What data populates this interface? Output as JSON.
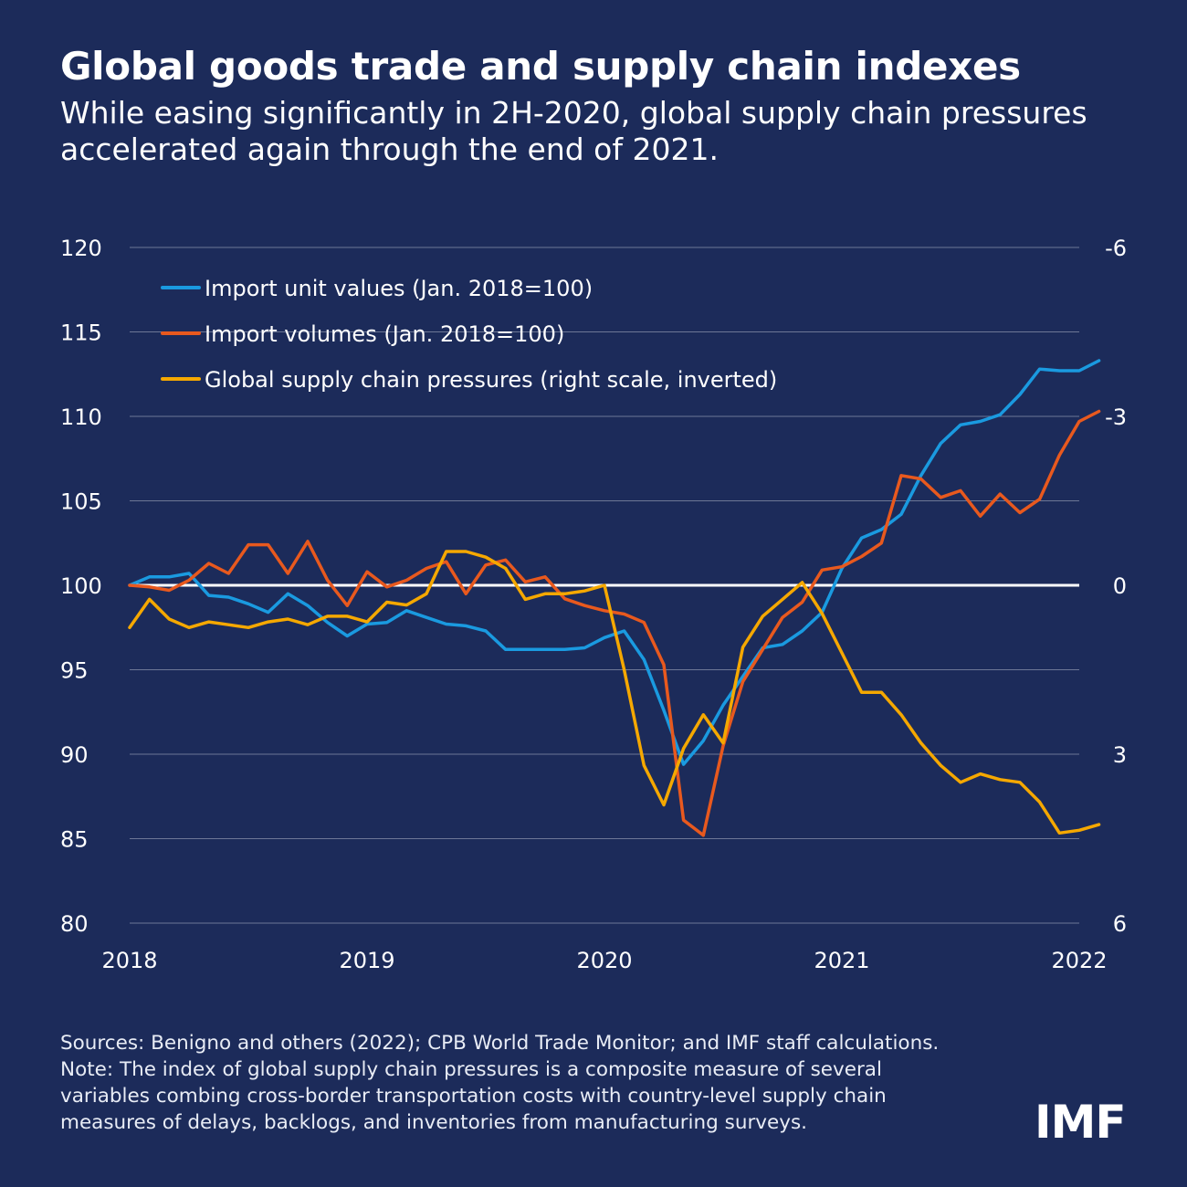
{
  "title": "Global goods trade and supply chain indexes",
  "subtitle": "While easing significantly in 2H-2020, global supply chain pressures accelerated again through the end of 2021.",
  "sources": "Sources: Benigno and others (2022); CPB World Trade Monitor; and IMF staff calculations.",
  "note_lines": [
    "Note: The index of global supply chain pressures is a composite measure of several",
    "variables combing cross-border transportation costs with country-level supply chain",
    "measures of delays, backlogs, and inventories from manufacturing surveys."
  ],
  "logo_text": "IMF",
  "colors": {
    "background": "#1c2b5a",
    "import_unit_values": "#1a9ae0",
    "import_volumes": "#e8591e",
    "supply_chain_pressures": "#f5a800",
    "gridline": "#6d7796",
    "baseline": "#ffffff"
  },
  "chart_data": {
    "type": "line",
    "x_tick_labels": [
      "2018",
      "2019",
      "2020",
      "2021",
      "2022"
    ],
    "x_range": [
      2018,
      2022
    ],
    "y_left": {
      "range": [
        80,
        120
      ],
      "ticks": [
        "120",
        "115",
        "110",
        "105",
        "100",
        "95",
        "90",
        "85",
        "80"
      ]
    },
    "y_right": {
      "range": [
        -6,
        6
      ],
      "inverted": true,
      "ticks": [
        "-6",
        "-3",
        "0",
        "3",
        "6"
      ]
    },
    "gridlines": true,
    "legend_position": "top-left",
    "series": [
      {
        "name": "Import unit values (Jan. 2018=100)",
        "axis": "left",
        "color": "#1a9ae0",
        "x_start": 2018,
        "step": 0.08333,
        "values": [
          100.0,
          100.5,
          100.5,
          100.7,
          99.4,
          99.3,
          98.9,
          98.4,
          99.5,
          98.8,
          97.8,
          97.0,
          97.7,
          97.8,
          98.5,
          98.1,
          97.7,
          97.6,
          97.3,
          96.2,
          96.2,
          96.2,
          96.2,
          96.3,
          96.9,
          97.3,
          95.6,
          92.6,
          89.4,
          90.8,
          92.9,
          94.6,
          96.3,
          96.5,
          97.3,
          98.4,
          101.0,
          102.8,
          103.3,
          104.2,
          106.5,
          108.4,
          109.5,
          109.7,
          110.1,
          111.3,
          112.8,
          112.7,
          112.7,
          113.3
        ]
      },
      {
        "name": "Import volumes (Jan. 2018=100)",
        "axis": "left",
        "color": "#e8591e",
        "x_start": 2018,
        "step": 0.08333,
        "values": [
          100.0,
          99.9,
          99.7,
          100.3,
          101.3,
          100.7,
          102.4,
          102.4,
          100.7,
          102.6,
          100.3,
          98.8,
          100.8,
          99.9,
          100.3,
          101.0,
          101.4,
          99.5,
          101.2,
          101.5,
          100.2,
          100.5,
          99.2,
          98.8,
          98.5,
          98.3,
          97.8,
          95.3,
          86.1,
          85.2,
          90.5,
          94.3,
          96.2,
          98.1,
          99.0,
          100.9,
          101.1,
          101.7,
          102.5,
          106.5,
          106.3,
          105.2,
          105.6,
          104.1,
          105.4,
          104.3,
          105.1,
          107.7,
          109.7,
          110.3
        ]
      },
      {
        "name": "Global supply chain pressures (right scale, inverted)",
        "axis": "right",
        "color": "#f5a800",
        "x_start": 2018,
        "step": 0.08333,
        "values": [
          0.75,
          0.25,
          0.6,
          0.75,
          0.65,
          0.7,
          0.75,
          0.65,
          0.6,
          0.7,
          0.55,
          0.55,
          0.65,
          0.3,
          0.35,
          0.15,
          -0.6,
          -0.6,
          -0.5,
          -0.3,
          0.25,
          0.15,
          0.15,
          0.1,
          0.0,
          1.5,
          3.2,
          3.9,
          2.9,
          2.3,
          2.8,
          1.1,
          0.55,
          0.25,
          -0.05,
          0.5,
          1.2,
          1.9,
          1.9,
          2.3,
          2.8,
          3.2,
          3.5,
          3.35,
          3.45,
          3.5,
          3.85,
          4.4,
          4.35,
          4.25
        ]
      }
    ]
  }
}
